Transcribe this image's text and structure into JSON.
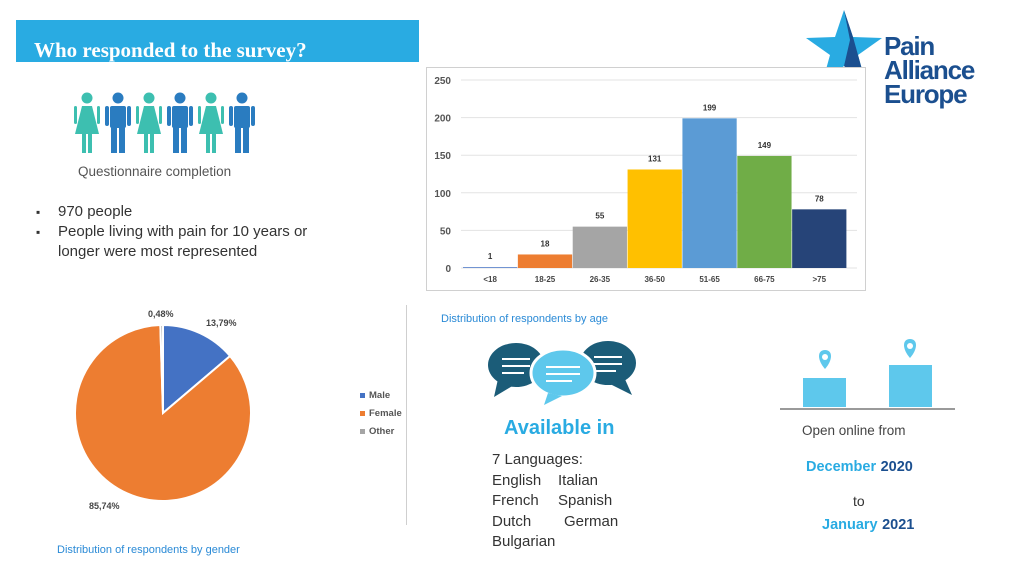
{
  "slide": {
    "title": "Who responded to the survey?",
    "logo": {
      "line1": "Pain Alliance",
      "line2": "Europe",
      "colors": {
        "star_light": "#29abe2",
        "star_dark": "#1b4f8f"
      }
    }
  },
  "people": {
    "caption": "Questionnaire completion",
    "icons": [
      "woman-icon",
      "man-icon",
      "woman-icon",
      "man-icon",
      "woman-icon",
      "man-icon"
    ],
    "colors": {
      "woman": "#3dbfb0",
      "man": "#2a7cc0"
    }
  },
  "bullets": [
    "970 people",
    "People living with pain for 10 years or longer were most represented"
  ],
  "age_chart": {
    "caption": "Distribution of respondents by age"
  },
  "gender_chart": {
    "caption": "Distribution of respondents by gender",
    "legend": [
      "Male",
      "Female",
      "Other"
    ]
  },
  "languages": {
    "heading": "Available in",
    "count_label": "7 Languages:",
    "rows": [
      [
        "English",
        "Italian"
      ],
      [
        "French",
        "Spanish"
      ],
      [
        "Dutch",
        "German"
      ],
      [
        "Bulgarian"
      ]
    ]
  },
  "availability": {
    "label": "Open online from",
    "from_month": "December",
    "from_year": "2020",
    "to": "to",
    "to_month": "January",
    "to_year": "2021"
  },
  "chart_data": [
    {
      "type": "bar",
      "categories": [
        "<18",
        "18-25",
        "26-35",
        "36-50",
        "51-65",
        "66-75",
        ">75"
      ],
      "values": [
        1,
        18,
        55,
        131,
        199,
        149,
        78
      ],
      "colors": [
        "#4472c4",
        "#ed7d31",
        "#a5a5a5",
        "#ffc000",
        "#5b9bd5",
        "#70ad47",
        "#264478"
      ],
      "ylim": [
        0,
        250
      ],
      "yticks": [
        0,
        50,
        100,
        150,
        200,
        250
      ],
      "grid": true,
      "data_labels": true
    },
    {
      "type": "pie",
      "categories": [
        "Male",
        "Female",
        "Other"
      ],
      "values": [
        13.79,
        85.74,
        0.48
      ],
      "labels": [
        "13,79%",
        "85,74%",
        "0,48%"
      ],
      "colors": [
        "#4472c4",
        "#ed7d31",
        "#a5a5a5"
      ],
      "legend": "right"
    }
  ]
}
